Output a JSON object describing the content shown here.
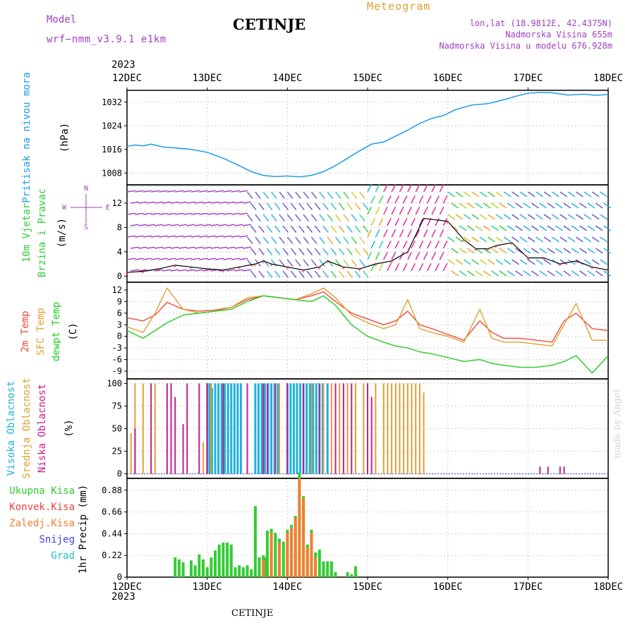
{
  "header": {
    "model_label": "Model",
    "model_name": "wrf−nmm_v3.9.1 e1km",
    "station": "CETINJE",
    "product": "Meteogram",
    "lonlat": "lon,lat (18.9812E, 42.4375N)",
    "elevation": "Nadmorska Visina 655m",
    "model_elevation": "Nadmorska Visina u modelu 676.928m",
    "year_top": "2023",
    "year_bottom": "2023",
    "footer_station": "CETINJE",
    "credit": "made by Angel"
  },
  "colors": {
    "pressure": "#1e9be8",
    "temp2m": "#f04a3a",
    "sfc": "#e0a030",
    "dewpt": "#22cc22",
    "purple": "#a040c0",
    "magenta": "#c0208c",
    "cyan": "#20b0e0",
    "green": "#33cc33",
    "red": "#e84040",
    "orange": "#f08030",
    "blue": "#4040e0",
    "teal": "#20c0c0",
    "gray": "#888888"
  },
  "chart_data": [
    {
      "type": "line",
      "name": "pressure",
      "ylabel_lines": [
        "Pritisak na nivou mora",
        "(hPa)"
      ],
      "x_ticks": [
        "12DEC",
        "13DEC",
        "14DEC",
        "15DEC",
        "16DEC",
        "17DEC",
        "18DEC"
      ],
      "y_ticks": [
        1008,
        1016,
        1024,
        1032
      ],
      "ylim": [
        1004,
        1036
      ],
      "x": [
        0.0,
        0.1,
        0.2,
        0.3,
        0.45,
        0.6,
        0.8,
        1.0,
        1.2,
        1.4,
        1.55,
        1.7,
        1.85,
        2.0,
        2.15,
        2.3,
        2.45,
        2.6,
        2.75,
        2.9,
        3.05,
        3.2,
        3.35,
        3.5,
        3.65,
        3.8,
        3.95,
        4.1,
        4.3,
        4.5,
        4.7,
        4.85,
        5.0,
        5.15,
        5.3,
        5.5,
        5.7,
        5.85,
        6.0
      ],
      "values": [
        1017,
        1017.5,
        1017.2,
        1017.8,
        1016.8,
        1016.5,
        1016,
        1015,
        1013,
        1010.5,
        1008.5,
        1007.2,
        1006.8,
        1007.0,
        1006.7,
        1007.2,
        1008.5,
        1010.5,
        1013,
        1015.5,
        1017.8,
        1018.5,
        1020.5,
        1022.5,
        1024.8,
        1026.5,
        1027.5,
        1029.5,
        1031,
        1031.5,
        1032.8,
        1034,
        1035,
        1035.3,
        1035.2,
        1034.4,
        1034.7,
        1034.3,
        1034.6
      ]
    },
    {
      "type": "line",
      "name": "wind",
      "ylabel_lines": [
        "10m Vjetar",
        "Brzina i Pravac",
        "(m/s)"
      ],
      "compass": {
        "n": "N",
        "e": "E",
        "w": "W",
        "s": "S"
      },
      "y_ticks": [
        0,
        4,
        8,
        12
      ],
      "ylim": [
        -1,
        15
      ],
      "x": [
        0.0,
        0.2,
        0.4,
        0.6,
        0.8,
        1.0,
        1.2,
        1.4,
        1.6,
        1.7,
        1.8,
        2.0,
        2.2,
        2.4,
        2.5,
        2.7,
        2.9,
        3.1,
        3.3,
        3.5,
        3.7,
        4.0,
        4.2,
        4.35,
        4.5,
        4.6,
        4.8,
        5.0,
        5.2,
        5.4,
        5.6,
        5.8,
        6.0
      ],
      "values": [
        0.6,
        0.8,
        1.2,
        1.8,
        1.5,
        1.2,
        1.0,
        1.5,
        2.0,
        2.5,
        2.0,
        1.5,
        1.0,
        1.5,
        2.5,
        1.5,
        1.2,
        2.0,
        2.5,
        4.0,
        9.5,
        9.0,
        6.0,
        4.5,
        4.5,
        5.0,
        5.5,
        3.0,
        3.0,
        2.0,
        2.5,
        1.5,
        1.0
      ]
    },
    {
      "type": "line",
      "name": "temperature",
      "ylabel_lines": [
        "2m Temp",
        "SFC Temp",
        "dewpt Temp",
        "(C)"
      ],
      "y_ticks": [
        -9,
        -6,
        -3,
        0,
        3,
        6,
        9,
        12
      ],
      "ylim": [
        -11,
        14
      ],
      "x": [
        0.0,
        0.2,
        0.35,
        0.5,
        0.7,
        0.9,
        1.1,
        1.3,
        1.5,
        1.7,
        1.9,
        2.1,
        2.3,
        2.45,
        2.6,
        2.8,
        3.0,
        3.2,
        3.35,
        3.5,
        3.65,
        3.8,
        4.0,
        4.2,
        4.4,
        4.55,
        4.7,
        4.9,
        5.1,
        5.3,
        5.45,
        5.6,
        5.8,
        6.0
      ],
      "series": [
        {
          "name": "2m Temp",
          "values": [
            4.8,
            4.0,
            5.5,
            8.8,
            7.0,
            6.5,
            6.8,
            7.5,
            9.5,
            10.5,
            10.0,
            9.5,
            10.5,
            11.5,
            9.0,
            6.0,
            4.5,
            3.0,
            4.0,
            6.5,
            3.0,
            2.0,
            0.5,
            -1.0,
            4.0,
            1.0,
            -0.5,
            -0.5,
            -1.0,
            -1.5,
            4.0,
            6.0,
            2.0,
            1.5
          ]
        },
        {
          "name": "SFC Temp",
          "values": [
            2.5,
            1.0,
            6.0,
            12.5,
            7.0,
            6.0,
            6.5,
            7.5,
            10.0,
            10.5,
            10.0,
            9.5,
            11.0,
            12.5,
            10.0,
            5.5,
            3.5,
            2.0,
            3.0,
            9.5,
            2.0,
            1.0,
            0.0,
            -1.5,
            7.0,
            -0.5,
            -1.5,
            -1.5,
            -2.0,
            -2.5,
            3.0,
            8.5,
            -1.0,
            -1.0
          ]
        },
        {
          "name": "dewpt Temp",
          "values": [
            1.5,
            -0.5,
            1.5,
            3.5,
            5.5,
            6.0,
            6.5,
            7.0,
            9.0,
            10.5,
            10.0,
            9.5,
            9.0,
            10.5,
            8.0,
            3.0,
            0.0,
            -1.5,
            -2.5,
            -3.0,
            -4.0,
            -4.5,
            -5.5,
            -6.5,
            -6.0,
            -7.0,
            -7.5,
            -8.0,
            -8.0,
            -7.5,
            -6.5,
            -5.0,
            -9.5,
            -5.0
          ]
        }
      ]
    },
    {
      "type": "bar",
      "name": "clouds",
      "ylabel_lines": [
        "Visoka Oblacnost",
        "Srednja Oblacnost",
        "Niska  Oblacnost",
        "(%)"
      ],
      "y_ticks": [
        0,
        25,
        50,
        75,
        100
      ],
      "ylim": [
        -5,
        105
      ],
      "series": [
        {
          "name": "Visoka",
          "x": [
            1.0,
            1.03,
            1.06,
            1.1,
            1.14,
            1.18,
            1.22,
            1.26,
            1.3,
            1.34,
            1.38,
            1.42,
            1.6,
            1.64,
            1.68,
            1.72,
            1.76,
            1.8,
            1.84,
            1.88,
            2.0,
            2.04,
            2.08,
            2.12,
            2.16,
            2.2,
            2.24,
            2.28,
            2.32,
            2.36,
            2.4,
            2.44,
            2.5
          ],
          "values": [
            100,
            100,
            95,
            100,
            100,
            100,
            100,
            100,
            100,
            100,
            100,
            100,
            100,
            100,
            100,
            100,
            100,
            100,
            100,
            100,
            100,
            100,
            100,
            100,
            100,
            100,
            100,
            100,
            100,
            100,
            100,
            100,
            100
          ]
        },
        {
          "name": "Srednja",
          "x": [
            0.05,
            0.1,
            0.2,
            0.35,
            0.95,
            1.0,
            1.05,
            1.9,
            2.3,
            2.45,
            2.55,
            2.65,
            2.75,
            2.85,
            2.95,
            3.1,
            3.2,
            3.25,
            3.3,
            3.35,
            3.4,
            3.45,
            3.5,
            3.55,
            3.6,
            3.65,
            3.7
          ],
          "values": [
            45,
            100,
            100,
            100,
            35,
            100,
            100,
            100,
            100,
            100,
            100,
            100,
            100,
            100,
            100,
            100,
            100,
            100,
            100,
            100,
            100,
            100,
            100,
            100,
            100,
            100,
            90
          ]
        },
        {
          "name": "Niska",
          "x": [
            0.1,
            0.3,
            0.5,
            0.55,
            0.6,
            0.7,
            0.75,
            0.9,
            1.0,
            1.2,
            1.5,
            1.7,
            1.75,
            1.85,
            2.0,
            2.2,
            2.4,
            2.6,
            2.7,
            2.8,
            3.0,
            3.05,
            5.15,
            5.25,
            5.4,
            5.45
          ],
          "values": [
            50,
            100,
            100,
            100,
            85,
            55,
            100,
            100,
            100,
            100,
            100,
            100,
            100,
            100,
            100,
            100,
            100,
            100,
            100,
            100,
            100,
            85,
            8,
            8,
            8,
            8
          ]
        }
      ]
    },
    {
      "type": "bar",
      "name": "precipitation",
      "ylabel_lines": [
        "1hr Precip (mm)"
      ],
      "legend": [
        "Ukupna Kisa",
        "Konvek.Kisa",
        "Zaledj.Kisa",
        "Snijeg",
        "Grad"
      ],
      "x_ticks": [
        "12DEC",
        "13DEC",
        "14DEC",
        "15DEC",
        "16DEC",
        "17DEC",
        "18DEC"
      ],
      "y_ticks": [
        0,
        0.22,
        0.44,
        0.66,
        0.88
      ],
      "ylim": [
        0,
        1.0
      ],
      "series": [
        {
          "name": "Ukupna Kisa",
          "x": [
            0.6,
            0.65,
            0.7,
            0.8,
            0.85,
            0.9,
            0.95,
            1.0,
            1.05,
            1.1,
            1.15,
            1.2,
            1.25,
            1.3,
            1.35,
            1.4,
            1.45,
            1.5,
            1.55,
            1.6,
            1.65,
            1.7,
            1.72,
            1.75,
            1.8,
            1.85,
            1.9,
            1.95,
            2.0,
            2.05,
            2.1,
            2.15,
            2.2,
            2.25,
            2.3,
            2.35,
            2.4,
            2.45,
            2.5,
            2.55,
            2.6,
            2.75,
            2.8,
            2.85
          ],
          "values": [
            0.2,
            0.18,
            0.15,
            0.17,
            0.12,
            0.23,
            0.18,
            0.1,
            0.2,
            0.27,
            0.33,
            0.35,
            0.35,
            0.33,
            0.1,
            0.12,
            0.1,
            0.12,
            0.08,
            0.72,
            0.2,
            0.22,
            0.2,
            0.47,
            0.49,
            0.45,
            0.39,
            0.36,
            0.48,
            0.53,
            0.62,
            1.06,
            0.82,
            0.33,
            0.48,
            0.25,
            0.28,
            0.16,
            0.16,
            0.16,
            0.05,
            0.05,
            0.03,
            0.11
          ]
        },
        {
          "name": "Konvek.Kisa",
          "x": [
            1.7,
            1.8,
            1.9,
            2.0,
            2.05,
            2.1,
            2.15,
            2.2,
            2.25,
            2.3,
            2.35
          ],
          "values": [
            0.18,
            0.45,
            0.35,
            0.45,
            0.5,
            0.6,
            1.0,
            0.8,
            0.3,
            0.45,
            0.2
          ]
        }
      ]
    }
  ]
}
